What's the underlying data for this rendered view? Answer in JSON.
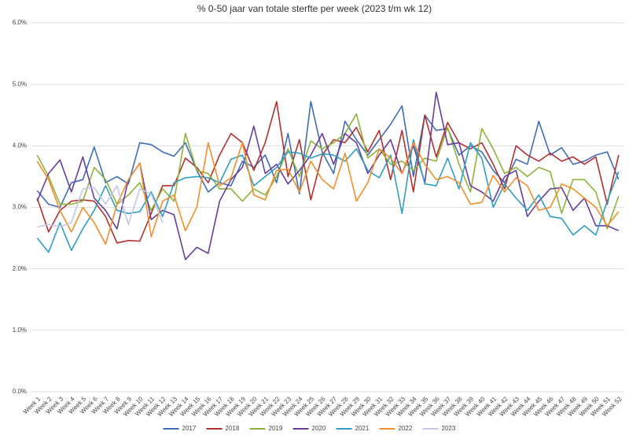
{
  "chart_data": {
    "type": "line",
    "title": "% 0-50 jaar van totale sterfte per week (2023 t/m wk 12)",
    "categories": [
      "Week 1",
      "Week 2",
      "Week 3",
      "Week 4",
      "Week 5",
      "Week 6",
      "Week 7",
      "Week 8",
      "Week 9",
      "Week 10",
      "Week 11",
      "Week 12",
      "Week 13",
      "Week 14",
      "Week 15",
      "Week 16",
      "Week 17",
      "Week 18",
      "Week 19",
      "Week 20",
      "Week 21",
      "Week 22",
      "Week 23",
      "Week 24",
      "Week 25",
      "Week 26",
      "Week 27",
      "Week 28",
      "Week 29",
      "Week 30",
      "Week 31",
      "Week 32",
      "Week 33",
      "Week 34",
      "Week 35",
      "Week 36",
      "Week 37",
      "Week 38",
      "Week 39",
      "Week 40",
      "Week 41",
      "Week 42",
      "Week 43",
      "Week 44",
      "Week 45",
      "Week 46",
      "Week 47",
      "Week 48",
      "Week 49",
      "Week 50",
      "Week 51",
      "Week 52"
    ],
    "series": [
      {
        "name": "2017",
        "color": "#3e6db5",
        "values": [
          3.27,
          3.05,
          3.0,
          3.4,
          3.45,
          3.98,
          3.4,
          3.5,
          3.38,
          4.05,
          4.02,
          3.9,
          3.83,
          4.05,
          3.6,
          3.25,
          3.4,
          3.35,
          3.75,
          3.65,
          3.85,
          3.4,
          4.2,
          3.22,
          4.72,
          3.9,
          3.55,
          4.4,
          4.1,
          3.85,
          4.1,
          4.35,
          4.65,
          3.5,
          4.5,
          4.25,
          4.28,
          3.85,
          4.0,
          3.9,
          3.6,
          3.4,
          3.78,
          3.7,
          4.4,
          3.85,
          3.97,
          3.7,
          3.75,
          3.85,
          3.9,
          3.45
        ]
      },
      {
        "name": "2018",
        "color": "#b3302f",
        "values": [
          3.15,
          2.6,
          2.95,
          3.1,
          3.12,
          3.1,
          2.85,
          2.42,
          2.46,
          2.45,
          2.9,
          3.35,
          3.35,
          3.8,
          3.65,
          3.4,
          3.85,
          4.2,
          4.05,
          3.6,
          4.05,
          4.72,
          3.5,
          4.1,
          3.12,
          3.85,
          4.1,
          4.05,
          4.3,
          3.9,
          4.25,
          3.45,
          4.25,
          3.25,
          4.5,
          3.82,
          4.38,
          4.05,
          3.95,
          4.05,
          3.7,
          3.3,
          4.0,
          3.85,
          3.75,
          3.88,
          3.75,
          3.82,
          3.7,
          3.82,
          3.05,
          3.85
        ]
      },
      {
        "name": "2019",
        "color": "#8db33a",
        "values": [
          3.85,
          3.5,
          3.05,
          3.05,
          3.1,
          3.65,
          3.45,
          3.05,
          3.2,
          3.4,
          2.95,
          3.3,
          3.1,
          4.2,
          3.6,
          3.55,
          3.3,
          3.3,
          3.1,
          3.3,
          3.2,
          3.5,
          3.95,
          3.5,
          4.08,
          3.95,
          4.05,
          4.2,
          4.52,
          3.8,
          3.95,
          3.7,
          3.75,
          3.6,
          3.8,
          3.75,
          4.3,
          3.7,
          3.25,
          4.28,
          3.95,
          3.55,
          3.65,
          3.5,
          3.65,
          3.58,
          2.9,
          3.45,
          3.45,
          3.25,
          2.65,
          3.18
        ]
      },
      {
        "name": "2020",
        "color": "#6a3d9a",
        "values": [
          3.1,
          3.55,
          3.77,
          3.25,
          3.82,
          3.15,
          2.95,
          2.65,
          3.45,
          3.72,
          2.8,
          2.95,
          2.88,
          2.15,
          2.35,
          2.25,
          3.1,
          3.45,
          3.65,
          4.32,
          3.55,
          3.7,
          3.38,
          3.6,
          3.85,
          4.2,
          3.7,
          4.2,
          4.05,
          3.55,
          3.85,
          4.1,
          3.55,
          4.0,
          3.4,
          4.87,
          4.02,
          4.05,
          3.35,
          3.25,
          3.1,
          3.5,
          3.6,
          2.85,
          3.1,
          3.3,
          3.32,
          2.95,
          3.15,
          2.7,
          2.7,
          2.62
        ]
      },
      {
        "name": "2021",
        "color": "#2e9ec1",
        "values": [
          2.5,
          2.27,
          2.75,
          2.3,
          2.65,
          2.95,
          3.35,
          2.95,
          2.9,
          2.93,
          3.25,
          2.85,
          3.4,
          3.48,
          3.5,
          3.48,
          3.4,
          3.78,
          3.85,
          3.35,
          3.5,
          3.65,
          3.9,
          3.88,
          3.8,
          3.87,
          3.85,
          3.75,
          3.95,
          3.6,
          3.48,
          3.85,
          2.9,
          4.1,
          3.38,
          3.35,
          3.8,
          3.3,
          4.05,
          3.8,
          3.0,
          3.38,
          3.15,
          2.95,
          3.2,
          2.85,
          2.82,
          2.55,
          2.7,
          2.55,
          3.1,
          3.58
        ]
      },
      {
        "name": "2022",
        "color": "#f28e2b",
        "values": [
          3.75,
          3.45,
          2.95,
          2.6,
          3.0,
          2.75,
          2.4,
          3.05,
          3.45,
          3.72,
          2.52,
          3.1,
          3.2,
          2.62,
          3.0,
          4.05,
          3.35,
          3.48,
          4.05,
          3.2,
          3.12,
          3.6,
          3.62,
          3.25,
          3.75,
          3.45,
          3.3,
          3.88,
          3.1,
          3.4,
          3.95,
          3.8,
          3.55,
          4.05,
          3.7,
          3.45,
          3.5,
          3.4,
          3.05,
          3.08,
          3.52,
          3.25,
          3.48,
          3.35,
          2.95,
          3.0,
          3.38,
          3.3,
          3.15,
          3.0,
          2.7,
          2.93
        ]
      },
      {
        "name": "2023",
        "color": "#c3c7e8",
        "values": [
          2.68,
          2.72,
          2.68,
          2.75,
          3.3,
          3.32,
          3.05,
          3.35,
          2.72,
          3.3,
          3.22,
          2.75,
          null,
          null,
          null,
          null,
          null,
          null,
          null,
          null,
          null,
          null,
          null,
          null,
          null,
          null,
          null,
          null,
          null,
          null,
          null,
          null,
          null,
          null,
          null,
          null,
          null,
          null,
          null,
          null,
          null,
          null,
          null,
          null,
          null,
          null,
          null,
          null,
          null,
          null,
          null,
          null
        ]
      }
    ],
    "ylim": [
      0,
      6
    ],
    "yticks": [
      {
        "value": 0,
        "label": "0.0%"
      },
      {
        "value": 1,
        "label": "1.0%"
      },
      {
        "value": 2,
        "label": "2.0%"
      },
      {
        "value": 3,
        "label": "3.0%"
      },
      {
        "value": 4,
        "label": "4.0%"
      },
      {
        "value": 5,
        "label": "5.0%"
      },
      {
        "value": 6,
        "label": "6.0%"
      }
    ],
    "grid": true,
    "legend": "bottom"
  }
}
